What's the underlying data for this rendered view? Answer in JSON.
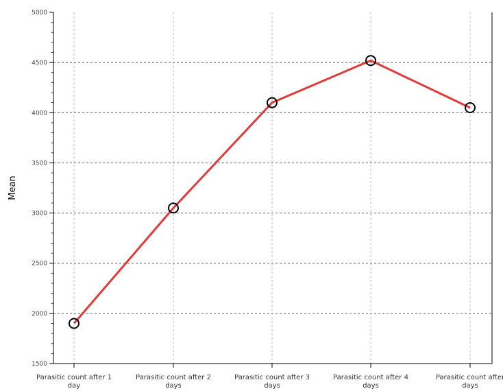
{
  "chart_data": {
    "type": "line",
    "title": "",
    "xlabel": "",
    "ylabel": "Mean",
    "categories": [
      [
        "Parasitic count after 1",
        "day"
      ],
      [
        "Parasitic count after 2",
        "days"
      ],
      [
        "Parasitic count after 3",
        "days"
      ],
      [
        "Parasitic count after 4",
        "days"
      ],
      [
        "Parasitic count after",
        "days"
      ]
    ],
    "series": [
      {
        "values": [
          1900,
          3050,
          4100,
          4520,
          4050
        ],
        "color": "#e03a3a"
      }
    ],
    "ylim": [
      1500,
      5000
    ],
    "yticks": [
      "1500",
      "2000",
      "2500",
      "3000",
      "3500",
      "4000",
      "4500",
      "5000"
    ],
    "grid": true,
    "marker": "circle"
  }
}
